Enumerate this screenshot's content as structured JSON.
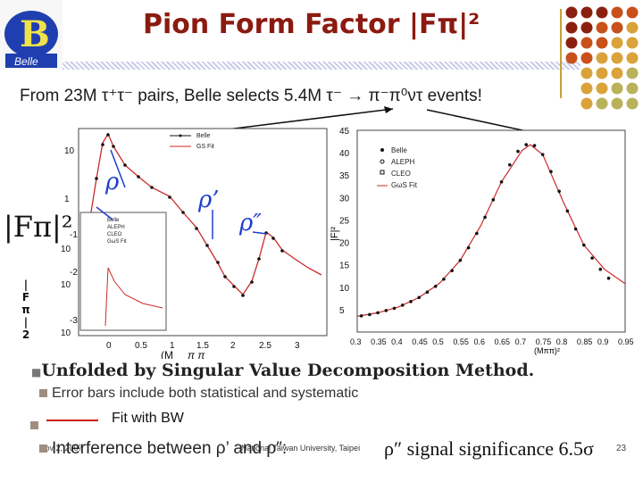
{
  "slide": {
    "logo_text": "Belle",
    "title": "Pion Form Factor |Fπ|²",
    "subtitle": "From 23M τ⁺τ⁻ pairs, Belle selects 5.4M τ⁻  →  π⁻π⁰ντ  events!",
    "vertical_label": "|Fπ|²",
    "bullets": {
      "main": "Unfolded by Singular Value Decomposition Method.",
      "errors": "Error bars include both statistical and  systematic",
      "fit": "Fit with BW",
      "interference": "Interference between ρ’ and ρ″:",
      "significance": "ρ″ signal significance  6.5σ"
    },
    "footer": "National Taiwan University, Taipei",
    "date": "Nov 2, 2007",
    "page": "23"
  },
  "colors": {
    "title": "#8b1a10",
    "dots": [
      "#8b2010",
      "#c8501a",
      "#d9a23a",
      "#b9b25a"
    ]
  },
  "left_plot": {
    "y_ticks": [
      "10",
      "1",
      "-1",
      "10",
      "-2",
      "10",
      "-3",
      "10"
    ],
    "x_ticks": [
      "0",
      "0.5",
      "1",
      "1.5",
      "2",
      "2.5",
      "3"
    ],
    "xlabel": "(M π π)",
    "labels": [
      "ρ",
      "ρ’",
      "ρ″"
    ],
    "legend_top": [
      "Belle",
      "GS Fit"
    ],
    "inset_legend": [
      "Belle",
      "ALEPH",
      "CLEO",
      "GωS Fit"
    ]
  },
  "chart_data": {
    "type": "scatter",
    "title": "",
    "xlabel": "(Mππ)² (GeV/c²)²",
    "ylabel": "|Fπ|²",
    "xlim": [
      0.3,
      0.95
    ],
    "ylim": [
      0,
      45
    ],
    "x_ticks": [
      "0.3",
      "0.35",
      "0.4",
      "0.45",
      "0.5",
      "0.55",
      "0.6",
      "0.65",
      "0.7",
      "0.75",
      "0.8",
      "0.85",
      "0.9",
      "0.95"
    ],
    "y_ticks": [
      "5",
      "10",
      "15",
      "20",
      "25",
      "30",
      "35",
      "40",
      "45"
    ],
    "legend": [
      "Belle",
      "ALEPH",
      "CLEO",
      "GωS Fit"
    ],
    "series": [
      {
        "name": "Belle",
        "x": [
          0.31,
          0.33,
          0.35,
          0.37,
          0.39,
          0.41,
          0.43,
          0.45,
          0.47,
          0.49,
          0.51,
          0.53,
          0.55,
          0.57,
          0.59,
          0.61,
          0.63,
          0.65,
          0.67,
          0.69,
          0.71,
          0.73,
          0.75,
          0.77,
          0.79,
          0.81,
          0.83,
          0.85,
          0.87,
          0.89,
          0.91
        ],
        "values": [
          3.6,
          3.9,
          4.3,
          4.8,
          5.3,
          6.0,
          6.8,
          7.7,
          8.9,
          10.2,
          11.8,
          13.7,
          16.0,
          18.8,
          22.0,
          25.6,
          29.5,
          33.5,
          37.3,
          40.3,
          41.8,
          41.6,
          39.6,
          35.8,
          31.4,
          27.0,
          23.0,
          19.4,
          16.5,
          14.0,
          12.0
        ]
      },
      {
        "name": "GωS Fit",
        "x": [
          0.3,
          0.35,
          0.4,
          0.45,
          0.5,
          0.55,
          0.6,
          0.65,
          0.7,
          0.72,
          0.75,
          0.8,
          0.85,
          0.9,
          0.95
        ],
        "values": [
          3.5,
          4.3,
          5.6,
          7.7,
          10.9,
          16.0,
          23.8,
          33.5,
          40.5,
          41.8,
          39.6,
          29.0,
          19.4,
          14.0,
          10.8
        ]
      }
    ]
  }
}
